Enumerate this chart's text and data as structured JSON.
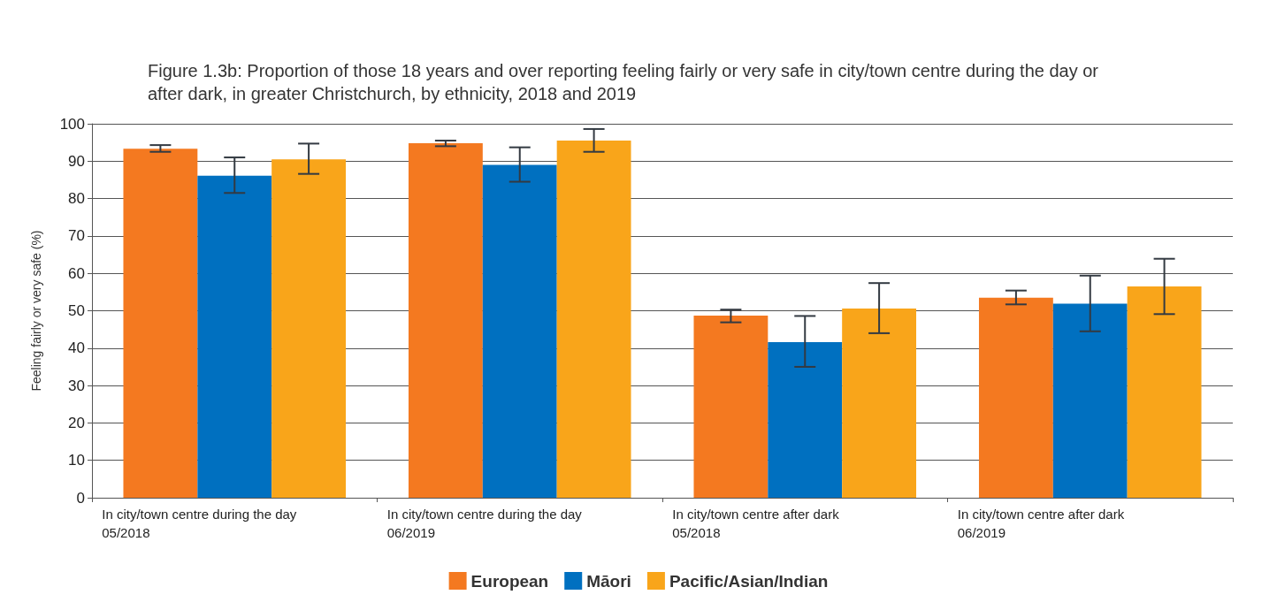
{
  "chart_data": {
    "type": "bar",
    "title": "Figure 1.3b: Proportion of those 18 years and over reporting feeling fairly or very safe in city/town centre during the day or after dark, in greater Christchurch, by ethnicity, 2018 and 2019",
    "ylabel": "Feeling fairly or very safe (%)",
    "categories": [
      "In city/town centre during the day\n05/2018",
      "In city/town centre during the day\n06/2019",
      "In city/town centre after dark\n05/2018",
      "In city/town centre after dark\n06/2019"
    ],
    "series": [
      {
        "name": "European",
        "color": "#f47920",
        "values": [
          93.3,
          94.8,
          48.7,
          53.5
        ],
        "errors": [
          [
            92.5,
            94.3
          ],
          [
            94.0,
            95.5
          ],
          [
            46.9,
            50.3
          ],
          [
            51.7,
            55.4
          ]
        ]
      },
      {
        "name": "Māori",
        "color": "#0070c0",
        "values": [
          86.1,
          89.0,
          41.6,
          51.9
        ],
        "errors": [
          [
            81.5,
            91.0
          ],
          [
            84.5,
            93.7
          ],
          [
            35.0,
            48.6
          ],
          [
            44.5,
            59.4
          ]
        ]
      },
      {
        "name": "Pacific/Asian/Indian",
        "color": "#f9a51a",
        "values": [
          90.5,
          95.5,
          50.6,
          56.5
        ],
        "errors": [
          [
            86.6,
            94.7
          ],
          [
            92.5,
            98.6
          ],
          [
            44.0,
            57.4
          ],
          [
            49.1,
            63.9
          ]
        ]
      }
    ],
    "ylim": [
      0,
      100
    ],
    "yticks": [
      0,
      10,
      20,
      30,
      40,
      50,
      60,
      70,
      80,
      90,
      100
    ],
    "grid": "y",
    "legend": "bottom"
  }
}
